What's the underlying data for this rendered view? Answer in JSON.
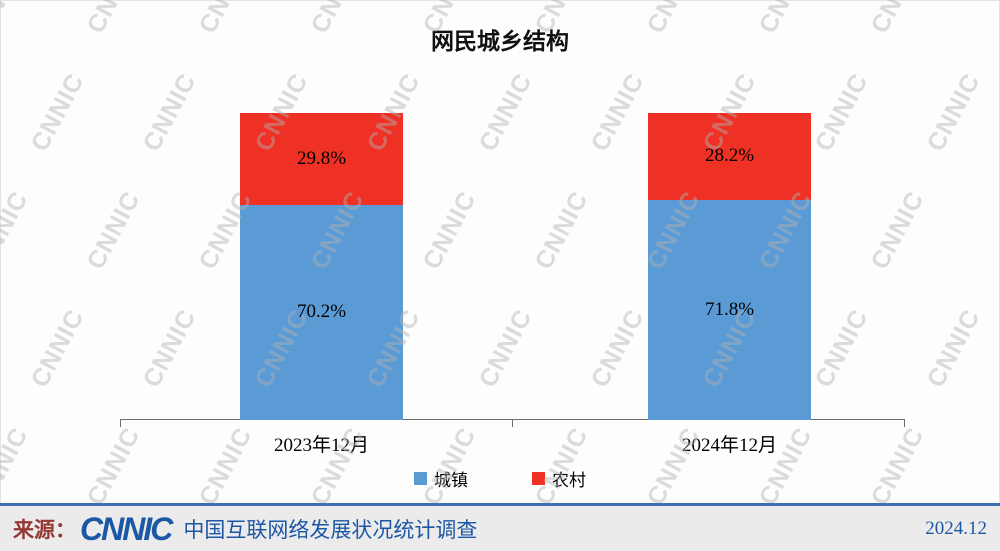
{
  "chart_data": {
    "type": "bar",
    "subtype": "stacked-column",
    "title": "网民城乡结构",
    "categories": [
      "2023年12月",
      "2024年12月"
    ],
    "series": [
      {
        "name": "城镇",
        "color": "#5B9BD5",
        "values": [
          70.2,
          71.8
        ],
        "labels": [
          "70.2%",
          "71.8%"
        ]
      },
      {
        "name": "农村",
        "color": "#EE3124",
        "values": [
          29.8,
          28.2
        ],
        "labels": [
          "29.8%",
          "28.2%"
        ]
      }
    ],
    "ylim": [
      0,
      100
    ],
    "unit": "%",
    "legend_position": "bottom",
    "grid": false
  },
  "watermark": {
    "text": "CNNIC"
  },
  "footer": {
    "source_label": "来源：",
    "logo_text": "CNNIC",
    "survey_name": "中国互联网络发展状况统计调查",
    "date": "2024.12",
    "brand_color": "#1C57A5",
    "source_color": "#953735",
    "rule_color": "#3F6EB5"
  }
}
